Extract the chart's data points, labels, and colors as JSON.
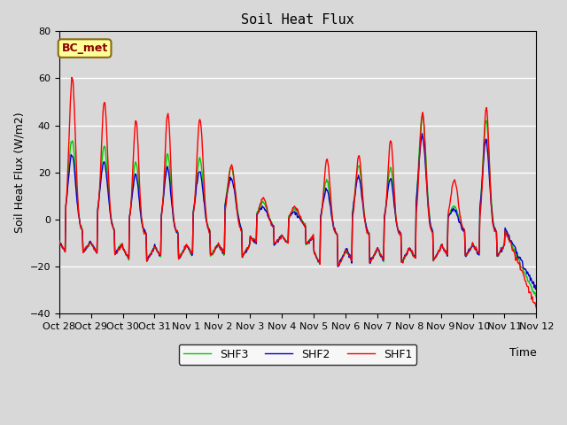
{
  "title": "Soil Heat Flux",
  "ylabel": "Soil Heat Flux (W/m2)",
  "xlabel": "Time",
  "ylim": [
    -40,
    80
  ],
  "yticks": [
    -40,
    -20,
    0,
    20,
    40,
    60,
    80
  ],
  "annotation": "BC_met",
  "annotation_color": "#8B0000",
  "annotation_bg": "#FFFF99",
  "annotation_edge": "#8B6914",
  "line_colors": {
    "SHF1": "#FF0000",
    "SHF2": "#0000CC",
    "SHF3": "#00CC00"
  },
  "line_width": 1.0,
  "bg_color": "#D8D8D8",
  "plot_bg_color": "#D8D8D8",
  "grid_color": "#FFFFFF",
  "x_tick_labels": [
    "Oct 28",
    "Oct 29",
    "Oct 30",
    "Oct 31",
    "Nov 1",
    "Nov 2",
    "Nov 3",
    "Nov 4",
    "Nov 5",
    "Nov 6",
    "Nov 7",
    "Nov 8",
    "Nov 9",
    "Nov 10",
    "Nov 11",
    "Nov 12"
  ],
  "num_days": 15
}
